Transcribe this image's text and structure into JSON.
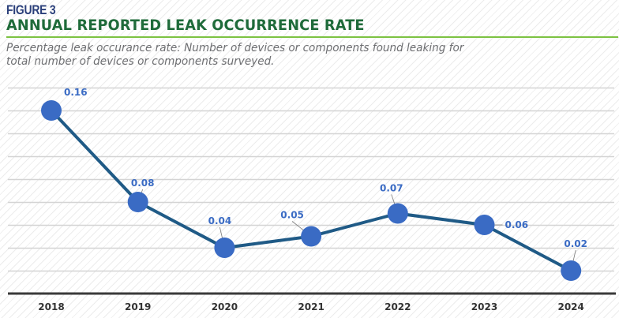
{
  "header": {
    "figure_label": "FIGURE 3",
    "title": "ANNUAL REPORTED LEAK OCCURRENCE RATE",
    "subtitle": "Percentage leak occurance rate: Number of devices or components found leaking for total number of devices or components surveyed."
  },
  "colors": {
    "title": "#1f6b3a",
    "figure_label": "#2a3f7a",
    "rule": "#7cc242",
    "line": "#1f5a86",
    "marker": "#3a6bc4",
    "data_label": "#3a6bc4",
    "gridline": "#d4d4d4",
    "axis": "#3a3a3a"
  },
  "chart_data": {
    "type": "line",
    "title": "ANNUAL REPORTED LEAK OCCURRENCE RATE",
    "subtitle": "Percentage leak occurance rate: Number of devices or components found leaking for total number of devices or components surveyed.",
    "xlabel": "",
    "ylabel": "",
    "categories": [
      "2018",
      "2019",
      "2020",
      "2021",
      "2022",
      "2023",
      "2024"
    ],
    "series": [
      {
        "name": "Leak occurrence rate",
        "values": [
          0.16,
          0.08,
          0.04,
          0.05,
          0.07,
          0.06,
          0.02
        ],
        "labels": [
          "0.16",
          "0.08",
          "0.04",
          "0.05",
          "0.07",
          "0.06",
          "0.02"
        ]
      }
    ],
    "ylim": [
      0,
      0.18
    ],
    "y_grid_step": 0.02,
    "grid": true,
    "y_tick_labels_shown": false,
    "legend": "none"
  }
}
